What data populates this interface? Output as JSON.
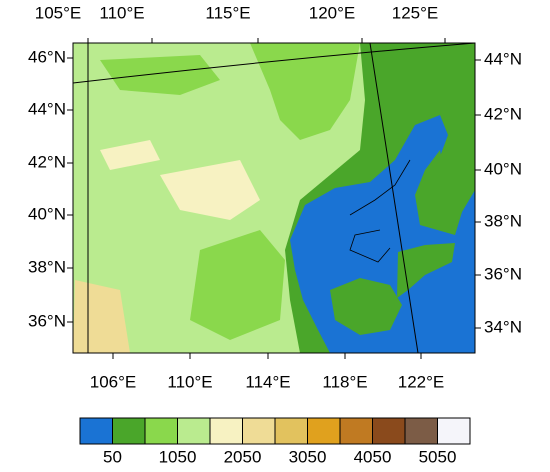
{
  "top_labels": [
    "105°E",
    "110°E",
    "115°E",
    "120°E",
    "125°E"
  ],
  "bottom_labels": [
    "106°E",
    "110°E",
    "114°E",
    "118°E",
    "122°E"
  ],
  "left_labels": [
    "46°N",
    "44°N",
    "42°N",
    "40°N",
    "38°N",
    "36°N"
  ],
  "right_labels": [
    "44°N",
    "42°N",
    "40°N",
    "38°N",
    "36°N",
    "34°N"
  ],
  "colorbar": {
    "colors": [
      "#1a73d4",
      "#4aa62a",
      "#8ad84c",
      "#baeb8f",
      "#f7f2c2",
      "#efdc96",
      "#e2c25e",
      "#e0a11e",
      "#c07a22",
      "#8a4a1c",
      "#7c5c46",
      "#f5f5fa"
    ],
    "labels": [
      "50",
      "1050",
      "2050",
      "3050",
      "4050",
      "5050"
    ]
  }
}
